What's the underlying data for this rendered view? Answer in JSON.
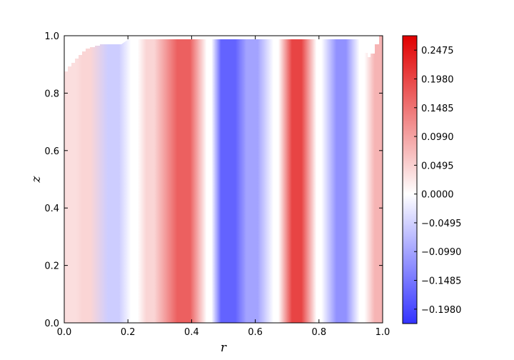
{
  "chart_data": {
    "type": "heatmap",
    "title": "",
    "xlabel": "r",
    "ylabel": "z",
    "xlim": [
      0.0,
      1.0
    ],
    "ylim": [
      0.0,
      1.0
    ],
    "xticks": [
      "0.0",
      "0.2",
      "0.4",
      "0.6",
      "0.8",
      "1.0"
    ],
    "yticks": [
      "0.0",
      "0.2",
      "0.4",
      "0.6",
      "0.8",
      "1.0"
    ],
    "grid": false,
    "colormap": "blue-white-red",
    "color_low": "#3333ff",
    "color_mid": "#ffffff",
    "color_high": "#e00000",
    "colorbar": {
      "range": [
        -0.2228,
        0.2723
      ],
      "ticks": [
        "0.2475",
        "0.1980",
        "0.1485",
        "0.0990",
        "0.0495",
        "0.0000",
        "−0.0495",
        "−0.0990",
        "−0.1485",
        "−0.1980"
      ],
      "tick_values": [
        0.2475,
        0.198,
        0.1485,
        0.099,
        0.0495,
        0.0,
        -0.0495,
        -0.099,
        -0.1485,
        -0.198
      ]
    },
    "bands": [
      {
        "r": 0.02,
        "value": 0.035,
        "width": 0.035
      },
      {
        "r": 0.07,
        "value": 0.045,
        "width": 0.025
      },
      {
        "r": 0.155,
        "value": -0.055,
        "width": 0.035
      },
      {
        "r": 0.22,
        "value": 0.0,
        "width": 0.02
      },
      {
        "r": 0.27,
        "value": 0.045,
        "width": 0.025
      },
      {
        "r": 0.375,
        "value": 0.17,
        "width": 0.04
      },
      {
        "r": 0.455,
        "value": 0.0,
        "width": 0.015
      },
      {
        "r": 0.515,
        "value": -0.17,
        "width": 0.045
      },
      {
        "r": 0.59,
        "value": -0.1,
        "width": 0.035
      },
      {
        "r": 0.665,
        "value": 0.0,
        "width": 0.015
      },
      {
        "r": 0.73,
        "value": 0.2,
        "width": 0.03
      },
      {
        "r": 0.8,
        "value": 0.0,
        "width": 0.015
      },
      {
        "r": 0.87,
        "value": -0.12,
        "width": 0.03
      },
      {
        "r": 0.935,
        "value": 0.0,
        "width": 0.015
      },
      {
        "r": 0.99,
        "value": 0.08,
        "width": 0.03
      }
    ]
  }
}
